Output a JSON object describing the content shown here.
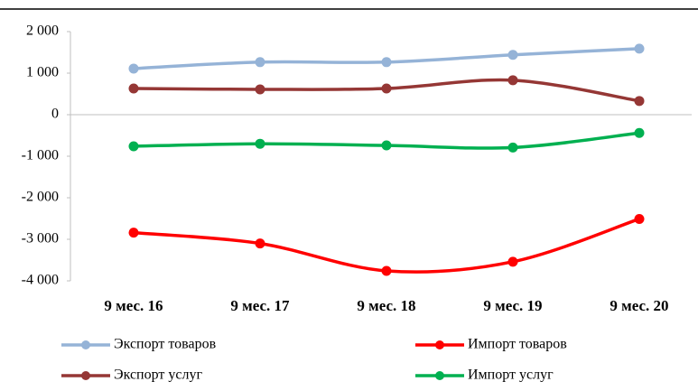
{
  "chart_data": {
    "type": "line",
    "categories": [
      "9 мес. 16",
      "9 мес. 17",
      "9 мес. 18",
      "9 мес. 19",
      "9 мес. 20"
    ],
    "series": [
      {
        "name": "Экспорт товаров",
        "color": "#95b3d7",
        "values": [
          1110,
          1265,
          1265,
          1440,
          1590
        ]
      },
      {
        "name": "Импорт товаров",
        "color": "#ff0000",
        "values": [
          -2840,
          -3100,
          -3760,
          -3540,
          -2510
        ]
      },
      {
        "name": "Экспорт услуг",
        "color": "#953735",
        "values": [
          630,
          610,
          630,
          830,
          330
        ]
      },
      {
        "name": "Импорт услуг",
        "color": "#00b050",
        "values": [
          -760,
          -700,
          -740,
          -790,
          -440
        ]
      }
    ],
    "ylim": [
      -4000,
      2000
    ],
    "yticks": [
      {
        "value": 2000,
        "label": "2 000"
      },
      {
        "value": 1000,
        "label": "1 000"
      },
      0,
      {
        "value": -1000,
        "label": "-1 000"
      },
      {
        "value": -2000,
        "label": "-2 000"
      },
      {
        "value": -3000,
        "label": "-3 000"
      },
      {
        "value": -4000,
        "label": "-4 000"
      }
    ],
    "legend": "bottom"
  }
}
